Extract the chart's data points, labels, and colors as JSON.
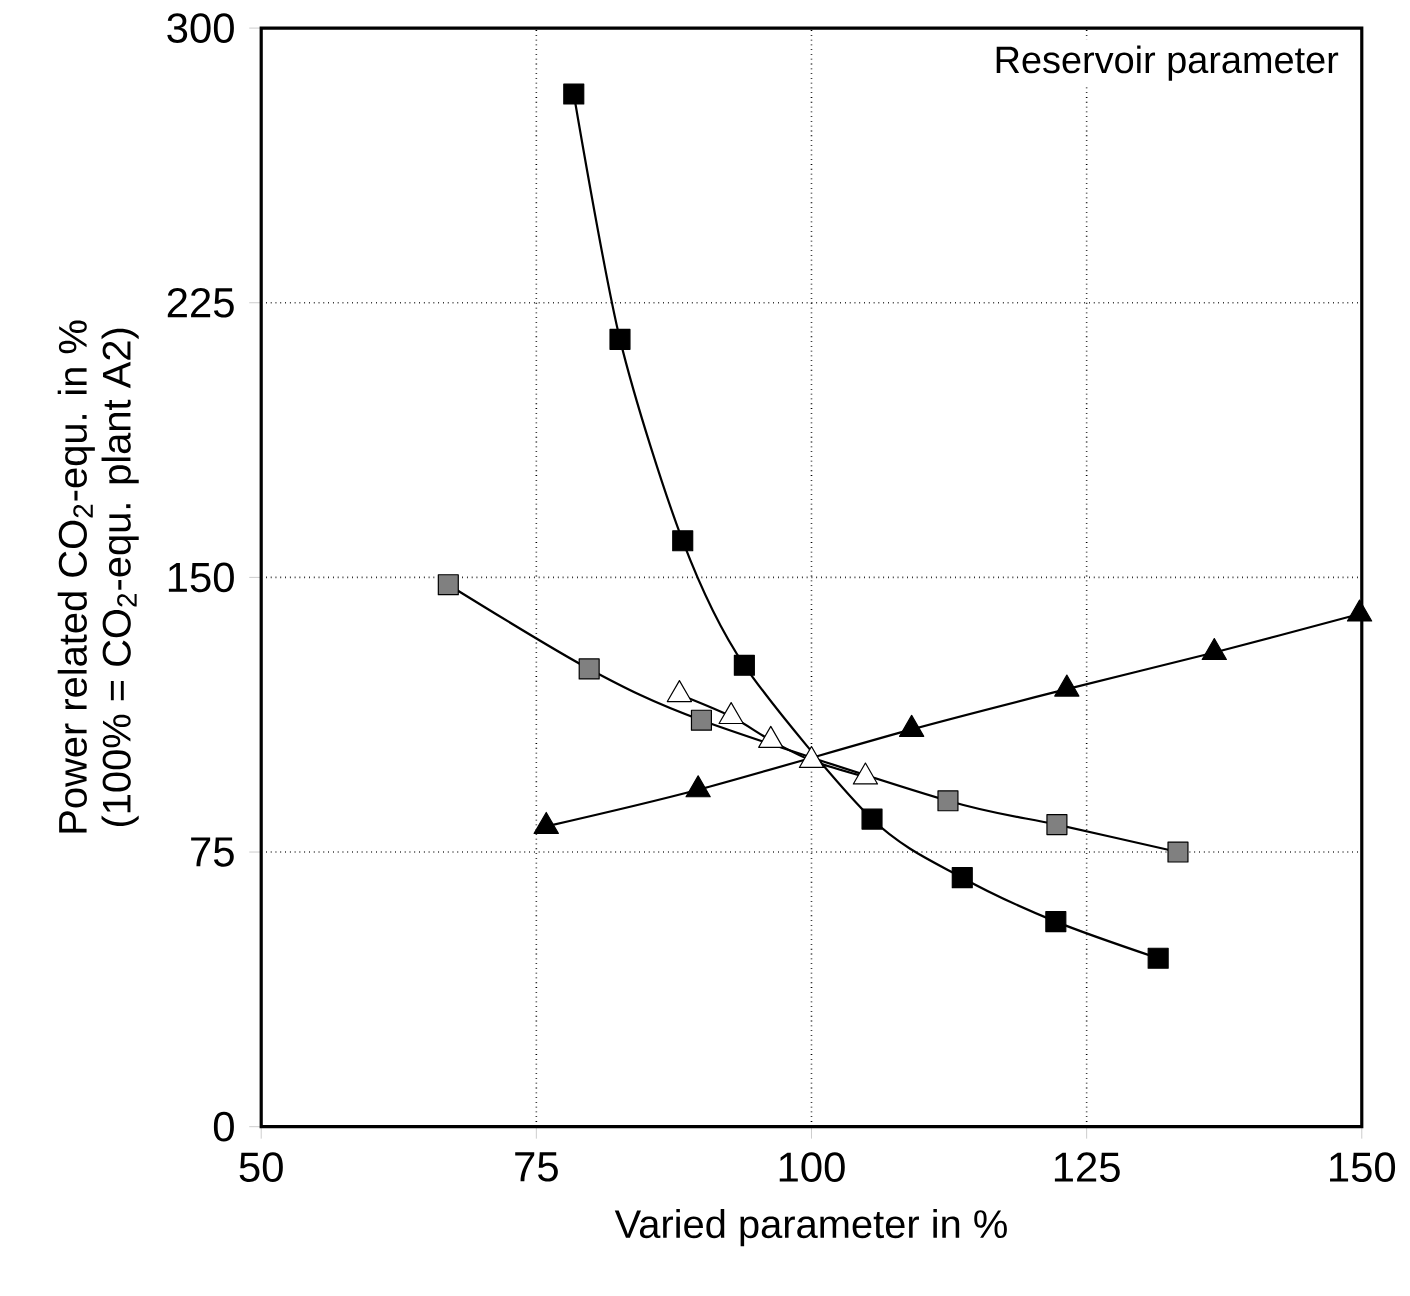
{
  "chart_data": {
    "type": "line",
    "xlabel": "Varied parameter in %",
    "ylabel": [
      "Power related CO$_{2}$-equ. in %",
      "(100% = CO$_{2}$-equ. plant A2)"
    ],
    "annotations": [
      "Reservoir parameter"
    ],
    "xlim": [
      50,
      150
    ],
    "xticks": [
      50,
      75,
      100,
      125,
      150
    ],
    "ylim": [
      0,
      300
    ],
    "yticks": [
      0,
      75,
      150,
      225,
      300
    ],
    "grid": true,
    "line_style": "solid",
    "series": [
      {
        "color": "#000000",
        "marker": "square",
        "x": [
          78.4,
          82.6,
          88.3,
          93.9,
          100,
          105.5,
          113.7,
          122.2,
          131.5
        ],
        "values": [
          282,
          215,
          160,
          126,
          null,
          84,
          68,
          56,
          46
        ]
      },
      {
        "color": "#808080",
        "marker": "square",
        "x": [
          67.0,
          79.8,
          90.0,
          100,
          112.4,
          122.3,
          133.3
        ],
        "values": [
          148,
          125,
          111,
          null,
          89,
          82.5,
          75
        ]
      },
      {
        "color": "#000000",
        "marker": "triangle",
        "x": [
          75.9,
          89.7,
          100,
          109.1,
          123.2,
          136.6,
          149.8
        ],
        "values": [
          82,
          92,
          null,
          108.5,
          119.5,
          129.5,
          140
        ]
      },
      {
        "color": "#ffffff",
        "marker": "triangle",
        "x": [
          88.0,
          92.7,
          96.3,
          100,
          104.9
        ],
        "values": [
          118,
          112,
          105.5,
          100,
          95.5
        ]
      }
    ]
  }
}
